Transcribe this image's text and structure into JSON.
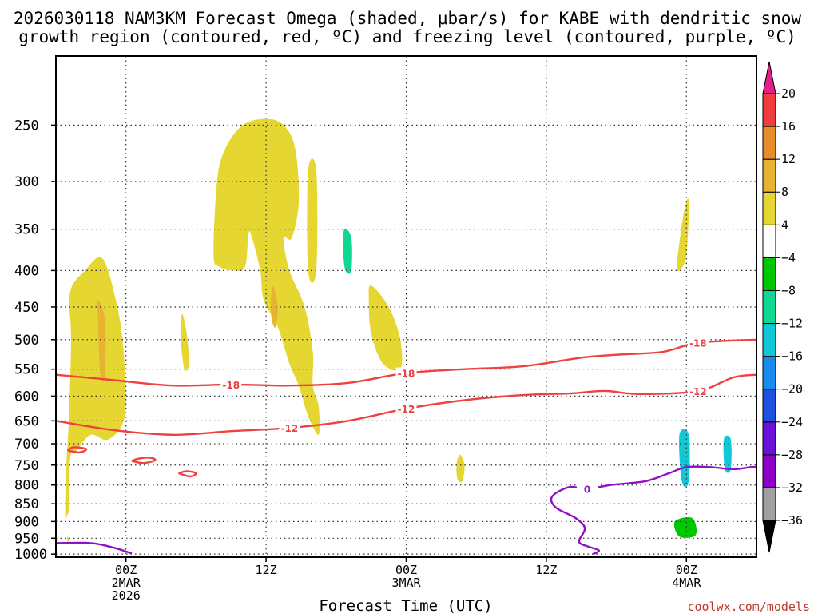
{
  "chart_data": {
    "type": "heatmap",
    "title_line1": "2026030118 NAM3KM Forecast Omega (shaded, μbar/s) for KABE with dendritic snow",
    "title_line2": "growth region (contoured, red, ºC) and freezing level (contoured, purple, ºC)",
    "xlabel": "Forecast Time (UTC)",
    "credit": "coolwx.com/models",
    "y_axis": {
      "unit": "hPa",
      "range": [
        1010,
        200
      ],
      "ticks": [
        250,
        300,
        350,
        400,
        450,
        500,
        550,
        600,
        650,
        700,
        750,
        800,
        850,
        900,
        950,
        1000
      ]
    },
    "x_axis": {
      "unit": "forecast hour",
      "range": [
        0,
        60
      ],
      "ticks": [
        {
          "h": 6,
          "label": "00Z",
          "sub1": "2MAR",
          "sub2": "2026"
        },
        {
          "h": 18,
          "label": "12Z",
          "sub1": "",
          "sub2": ""
        },
        {
          "h": 30,
          "label": "00Z",
          "sub1": "3MAR",
          "sub2": ""
        },
        {
          "h": 42,
          "label": "12Z",
          "sub1": "",
          "sub2": ""
        },
        {
          "h": 54,
          "label": "00Z",
          "sub1": "4MAR",
          "sub2": ""
        }
      ]
    },
    "colorbar": {
      "levels": [
        -36,
        -32,
        -28,
        -24,
        -20,
        -16,
        -12,
        -8,
        -4,
        4,
        8,
        12,
        16,
        20
      ],
      "colors": [
        "#000000",
        "#a0a0a0",
        "#8c00c8",
        "#6a10d8",
        "#2050e0",
        "#1a8cf0",
        "#10c8d8",
        "#10d890",
        "#00c800",
        "#ffffff",
        "#e6d632",
        "#e6b432",
        "#e68c28",
        "#f03c3c",
        "#e61e8c"
      ]
    },
    "omega_regions": [
      {
        "label": "ascent left column",
        "value": 4,
        "pts": [
          [
            1.1,
            960
          ],
          [
            0.8,
            880
          ],
          [
            0.9,
            750
          ],
          [
            1.1,
            650
          ],
          [
            1.3,
            500
          ],
          [
            1.2,
            430
          ],
          [
            2.5,
            400
          ],
          [
            4.0,
            385
          ],
          [
            5.2,
            445
          ],
          [
            5.8,
            520
          ],
          [
            5.9,
            640
          ],
          [
            4.5,
            690
          ],
          [
            3.0,
            680
          ],
          [
            1.8,
            715
          ],
          [
            1.2,
            740
          ]
        ]
      },
      {
        "label": "ascent left column core",
        "value": 8,
        "pts": [
          [
            3.6,
            440
          ],
          [
            4.2,
            470
          ],
          [
            4.2,
            560
          ],
          [
            3.8,
            560
          ],
          [
            3.6,
            470
          ]
        ]
      },
      {
        "label": "small yellow streak",
        "value": 4,
        "pts": [
          [
            10.8,
            460
          ],
          [
            11.2,
            490
          ],
          [
            11.4,
            540
          ],
          [
            11.0,
            550
          ],
          [
            10.7,
            500
          ]
        ]
      },
      {
        "label": "upper yellow plume",
        "value": 4,
        "pts": [
          [
            13.5,
            380
          ],
          [
            13.8,
            300
          ],
          [
            14.5,
            270
          ],
          [
            16.0,
            250
          ],
          [
            18.0,
            245
          ],
          [
            19.5,
            250
          ],
          [
            20.5,
            270
          ],
          [
            20.8,
            320
          ],
          [
            20.2,
            360
          ],
          [
            19.5,
            360
          ],
          [
            20.0,
            400
          ],
          [
            21.3,
            450
          ],
          [
            22.0,
            520
          ],
          [
            22.0,
            580
          ],
          [
            22.5,
            620
          ],
          [
            22.5,
            680
          ],
          [
            21.6,
            640
          ],
          [
            20.8,
            580
          ],
          [
            20.0,
            540
          ],
          [
            19.0,
            480
          ],
          [
            17.8,
            440
          ],
          [
            17.5,
            400
          ],
          [
            16.8,
            360
          ],
          [
            16.5,
            355
          ],
          [
            16.2,
            395
          ],
          [
            15.2,
            400
          ],
          [
            14.0,
            395
          ]
        ]
      },
      {
        "label": "upper yellow plume core",
        "value": 8,
        "pts": [
          [
            18.6,
            420
          ],
          [
            19.0,
            450
          ],
          [
            18.8,
            480
          ],
          [
            18.5,
            470
          ],
          [
            18.4,
            445
          ]
        ]
      },
      {
        "label": "yellow thin streak",
        "value": 4,
        "pts": [
          [
            21.6,
            290
          ],
          [
            22.3,
            290
          ],
          [
            22.3,
            400
          ],
          [
            21.6,
            400
          ]
        ]
      },
      {
        "label": "yellow blob mid",
        "value": 4,
        "pts": [
          [
            27.0,
            420
          ],
          [
            28.5,
            450
          ],
          [
            29.5,
            500
          ],
          [
            29.5,
            550
          ],
          [
            28.0,
            540
          ],
          [
            27.0,
            490
          ],
          [
            26.8,
            440
          ]
        ]
      },
      {
        "label": "yellow blob low",
        "value": 4,
        "pts": [
          [
            34.6,
            725
          ],
          [
            35.0,
            750
          ],
          [
            34.8,
            790
          ],
          [
            34.4,
            785
          ],
          [
            34.3,
            750
          ]
        ]
      },
      {
        "label": "green cell upper",
        "value": -4,
        "pts": [
          [
            23.8,
            370
          ],
          [
            24.8,
            345
          ],
          [
            25.5,
            330
          ],
          [
            26.3,
            350
          ],
          [
            26.2,
            410
          ],
          [
            25.0,
            430
          ],
          [
            24.0,
            400
          ],
          [
            23.4,
            380
          ]
        ]
      },
      {
        "label": "green cell upper core",
        "value": -12,
        "pts": [
          [
            24.7,
            350
          ],
          [
            25.3,
            360
          ],
          [
            25.3,
            400
          ],
          [
            24.8,
            400
          ],
          [
            24.6,
            375
          ]
        ]
      },
      {
        "label": "green low left",
        "value": -4,
        "pts": [
          [
            0.8,
            935
          ],
          [
            1.0,
            880
          ],
          [
            1.8,
            855
          ],
          [
            3.0,
            860
          ],
          [
            4.5,
            875
          ],
          [
            5.5,
            895
          ],
          [
            5.2,
            920
          ],
          [
            4.0,
            915
          ],
          [
            3.0,
            930
          ],
          [
            1.5,
            950
          ]
        ]
      },
      {
        "label": "green low mid1",
        "value": -4,
        "pts": [
          [
            27.4,
            950
          ],
          [
            28.0,
            935
          ],
          [
            28.8,
            940
          ],
          [
            28.6,
            975
          ],
          [
            27.8,
            980
          ]
        ]
      },
      {
        "label": "green low mid2",
        "value": -4,
        "pts": [
          [
            32.8,
            965
          ],
          [
            33.8,
            960
          ],
          [
            35.6,
            950
          ],
          [
            36.4,
            945
          ],
          [
            36.2,
            960
          ],
          [
            33.0,
            965
          ]
        ]
      },
      {
        "label": "green low right",
        "value": -4,
        "pts": [
          [
            37.5,
            960
          ],
          [
            39.5,
            955
          ],
          [
            40.5,
            910
          ],
          [
            42.0,
            920
          ],
          [
            43.5,
            940
          ],
          [
            44.5,
            900
          ],
          [
            46.0,
            890
          ],
          [
            48.0,
            870
          ],
          [
            50.0,
            880
          ],
          [
            51.0,
            855
          ],
          [
            52.8,
            860
          ],
          [
            53.5,
            830
          ],
          [
            54.5,
            850
          ],
          [
            56.0,
            870
          ],
          [
            57.0,
            890
          ],
          [
            57.2,
            960
          ],
          [
            55.0,
            970
          ],
          [
            53.0,
            975
          ],
          [
            50.0,
            975
          ],
          [
            47.0,
            970
          ],
          [
            45.0,
            975
          ],
          [
            42.0,
            960
          ],
          [
            39.0,
            965
          ]
        ]
      },
      {
        "label": "green low right core",
        "value": -8,
        "pts": [
          [
            53.0,
            900
          ],
          [
            54.5,
            890
          ],
          [
            54.8,
            940
          ],
          [
            53.4,
            945
          ]
        ]
      },
      {
        "label": "green tall cells",
        "value": -4,
        "pts": [
          [
            48.5,
            590
          ],
          [
            49.0,
            570
          ],
          [
            49.7,
            580
          ],
          [
            50.5,
            650
          ],
          [
            51.0,
            710
          ],
          [
            51.8,
            745
          ],
          [
            50.6,
            740
          ],
          [
            50.0,
            720
          ],
          [
            49.5,
            680
          ]
        ]
      },
      {
        "label": "green tall cells right",
        "value": -4,
        "pts": [
          [
            52.0,
            700
          ],
          [
            52.8,
            660
          ],
          [
            53.8,
            630
          ],
          [
            54.8,
            640
          ],
          [
            55.0,
            760
          ],
          [
            54.6,
            820
          ],
          [
            54.0,
            880
          ],
          [
            53.0,
            860
          ],
          [
            52.4,
            800
          ]
        ]
      },
      {
        "label": "green tall cells right core",
        "value": -16,
        "pts": [
          [
            53.4,
            680
          ],
          [
            54.2,
            680
          ],
          [
            54.2,
            790
          ],
          [
            53.6,
            790
          ]
        ]
      },
      {
        "label": "green tall cells far right",
        "value": -4,
        "pts": [
          [
            56.6,
            640
          ],
          [
            57.2,
            550
          ],
          [
            57.7,
            520
          ],
          [
            58.1,
            620
          ],
          [
            58.4,
            720
          ],
          [
            58.0,
            820
          ],
          [
            57.5,
            800
          ],
          [
            57.0,
            750
          ]
        ]
      },
      {
        "label": "green tall cells far right core",
        "value": -16,
        "pts": [
          [
            57.2,
            690
          ],
          [
            57.8,
            690
          ],
          [
            57.8,
            760
          ],
          [
            57.3,
            760
          ]
        ]
      },
      {
        "label": "green upper right",
        "value": -4,
        "pts": [
          [
            57.9,
            320
          ],
          [
            58.3,
            320
          ],
          [
            58.3,
            420
          ],
          [
            57.9,
            420
          ]
        ]
      },
      {
        "label": "green edge right",
        "value": -4,
        "pts": [
          [
            59.4,
            600
          ],
          [
            60.0,
            590
          ],
          [
            60.0,
            650
          ],
          [
            59.3,
            640
          ]
        ]
      },
      {
        "label": "yellow upper right",
        "value": 4,
        "pts": [
          [
            53.2,
            390
          ],
          [
            53.8,
            330
          ],
          [
            54.2,
            320
          ],
          [
            54.0,
            380
          ],
          [
            53.4,
            400
          ]
        ]
      }
    ],
    "temperature_contours": [
      {
        "label": "-18",
        "color": "#f04040",
        "pts": [
          [
            0,
            560
          ],
          [
            5,
            570
          ],
          [
            10,
            580
          ],
          [
            15,
            578
          ],
          [
            20,
            580
          ],
          [
            25,
            575
          ],
          [
            30,
            557
          ],
          [
            35,
            550
          ],
          [
            40,
            545
          ],
          [
            45,
            530
          ],
          [
            48,
            525
          ],
          [
            52,
            520
          ],
          [
            55,
            505
          ],
          [
            60,
            500
          ]
        ]
      },
      {
        "label": "-12",
        "color": "#f04040",
        "pts": [
          [
            0,
            650
          ],
          [
            5,
            670
          ],
          [
            10,
            680
          ],
          [
            15,
            672
          ],
          [
            20,
            665
          ],
          [
            25,
            650
          ],
          [
            30,
            625
          ],
          [
            35,
            608
          ],
          [
            40,
            598
          ],
          [
            44,
            595
          ],
          [
            47,
            590
          ],
          [
            50,
            596
          ],
          [
            55,
            590
          ],
          [
            58,
            565
          ],
          [
            60,
            560
          ]
        ]
      },
      {
        "label": "",
        "color": "#f04040",
        "pts": [
          [
            1.0,
            715
          ],
          [
            2.0,
            720
          ],
          [
            2.6,
            712
          ],
          [
            1.5,
            708
          ],
          [
            1.0,
            715
          ]
        ]
      },
      {
        "label": "",
        "color": "#f04040",
        "pts": [
          [
            6.5,
            740
          ],
          [
            7.5,
            745
          ],
          [
            8.5,
            738
          ],
          [
            8.0,
            732
          ],
          [
            7.0,
            735
          ],
          [
            6.5,
            740
          ]
        ]
      },
      {
        "label": "",
        "color": "#f04040",
        "pts": [
          [
            10.5,
            770
          ],
          [
            11.5,
            778
          ],
          [
            12.0,
            770
          ],
          [
            11.2,
            765
          ],
          [
            10.5,
            770
          ]
        ]
      }
    ],
    "freezing_contours": [
      {
        "label": "0",
        "color": "#9010c8",
        "pts": [
          [
            0,
            965
          ],
          [
            3,
            965
          ],
          [
            5,
            980
          ],
          [
            6.5,
            998
          ]
        ]
      },
      {
        "label": "0",
        "color": "#9010c8",
        "pts": [
          [
            46,
            1000
          ],
          [
            46.5,
            988
          ],
          [
            45.5,
            975
          ],
          [
            44.8,
            960
          ],
          [
            45.3,
            920
          ],
          [
            44.5,
            890
          ],
          [
            42.8,
            860
          ],
          [
            42.5,
            830
          ],
          [
            44.0,
            805
          ],
          [
            45.5,
            810
          ],
          [
            47.5,
            800
          ],
          [
            50.5,
            790
          ],
          [
            52.5,
            770
          ],
          [
            54.0,
            755
          ],
          [
            56.0,
            755
          ],
          [
            58.0,
            760
          ],
          [
            59.5,
            755
          ],
          [
            60.0,
            755
          ]
        ]
      }
    ]
  }
}
